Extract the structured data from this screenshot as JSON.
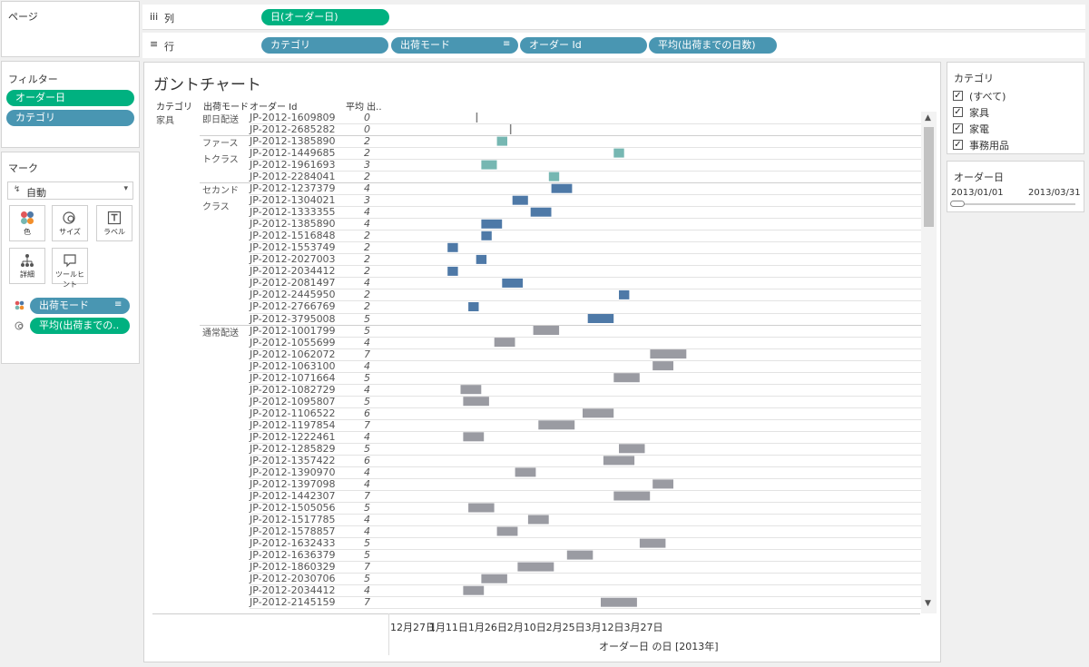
{
  "pages_panel": {
    "title": "ページ"
  },
  "columns_shelf": {
    "icon": "iii",
    "label": "列",
    "pills": [
      "日(オーダー日)"
    ]
  },
  "rows_shelf": {
    "icon": "≡",
    "label": "行",
    "pills": [
      "カテゴリ",
      "出荷モード",
      "オーダー Id",
      "平均(出荷までの日数)"
    ]
  },
  "filters": {
    "title": "フィルター",
    "items": [
      {
        "label": "オーダー日",
        "color": "#00b180"
      },
      {
        "label": "カテゴリ",
        "color": "#4996b2"
      }
    ]
  },
  "marks": {
    "title": "マーク",
    "type": "自動",
    "buttons": [
      {
        "label": "色",
        "icon": "color-dots-icon"
      },
      {
        "label": "サイズ",
        "icon": "size-icon"
      },
      {
        "label": "ラベル",
        "icon": "label-icon"
      },
      {
        "label": "詳細",
        "icon": "detail-icon"
      },
      {
        "label": "ツールヒント",
        "icon": "tooltip-icon"
      }
    ],
    "fields": [
      "出荷モード",
      "平均(出荷までの.."
    ]
  },
  "view": {
    "title": "ガントチャート",
    "headers": {
      "category": "カテゴリ",
      "ship_mode": "出荷モード",
      "order_id": "オーダー Id",
      "avg": "平均 出.."
    },
    "axis_title": "オーダー日 の日 [2013年]",
    "axis_ticks": [
      "12月27日",
      "1月11日",
      "1月26日",
      "2月10日",
      "2月25日",
      "3月12日",
      "3月27日"
    ]
  },
  "colors": {
    "即日配送": "#7f7f7f",
    "ファーストクラス": "#76b7b2",
    "セカンドクラス": "#4e79a7",
    "通常配送": "#9a9ba2"
  },
  "chart_data": {
    "type": "gantt",
    "x_label": "オーダー日 の日 [2013年]",
    "x_ticks": [
      "12月27日",
      "1月11日",
      "1月26日",
      "2月10日",
      "2月25日",
      "3月12日",
      "3月27日"
    ],
    "category": "家具",
    "groups": [
      {
        "ship_mode": "即日配送",
        "rows": [
          {
            "id": "JP-2012-1609809",
            "start": "2013-01-20",
            "avg": 0
          },
          {
            "id": "JP-2012-2685282",
            "start": "2013-02-02",
            "avg": 0
          }
        ]
      },
      {
        "ship_mode": "ファーストクラス",
        "rows": [
          {
            "id": "JP-2012-1385890",
            "start": "2013-01-28",
            "avg": 2
          },
          {
            "id": "JP-2012-1449685",
            "start": "2013-03-14",
            "avg": 2
          },
          {
            "id": "JP-2012-1961693",
            "start": "2013-01-22",
            "avg": 3
          },
          {
            "id": "JP-2012-2284041",
            "start": "2013-02-17",
            "avg": 2
          }
        ]
      },
      {
        "ship_mode": "セカンドクラス",
        "rows": [
          {
            "id": "JP-2012-1237379",
            "start": "2013-02-18",
            "avg": 4
          },
          {
            "id": "JP-2012-1304021",
            "start": "2013-02-03",
            "avg": 3
          },
          {
            "id": "JP-2012-1333355",
            "start": "2013-02-10",
            "avg": 4
          },
          {
            "id": "JP-2012-1385890",
            "start": "2013-01-22",
            "avg": 4
          },
          {
            "id": "JP-2012-1516848",
            "start": "2013-01-22",
            "avg": 2
          },
          {
            "id": "JP-2012-1553749",
            "start": "2013-01-09",
            "avg": 2
          },
          {
            "id": "JP-2012-2027003",
            "start": "2013-01-20",
            "avg": 2
          },
          {
            "id": "JP-2012-2034412",
            "start": "2013-01-09",
            "avg": 2
          },
          {
            "id": "JP-2012-2081497",
            "start": "2013-01-30",
            "avg": 4
          },
          {
            "id": "JP-2012-2445950",
            "start": "2013-03-16",
            "avg": 2
          },
          {
            "id": "JP-2012-2766769",
            "start": "2013-01-17",
            "avg": 2
          },
          {
            "id": "JP-2012-3795008",
            "start": "2013-03-04",
            "avg": 5
          }
        ]
      },
      {
        "ship_mode": "通常配送",
        "rows": [
          {
            "id": "JP-2012-1001799",
            "start": "2013-02-11",
            "avg": 5
          },
          {
            "id": "JP-2012-1055699",
            "start": "2013-01-27",
            "avg": 4
          },
          {
            "id": "JP-2012-1062072",
            "start": "2013-03-28",
            "avg": 7
          },
          {
            "id": "JP-2012-1063100",
            "start": "2013-03-29",
            "avg": 4
          },
          {
            "id": "JP-2012-1071664",
            "start": "2013-03-14",
            "avg": 5
          },
          {
            "id": "JP-2012-1082729",
            "start": "2013-01-14",
            "avg": 4
          },
          {
            "id": "JP-2012-1095807",
            "start": "2013-01-15",
            "avg": 5
          },
          {
            "id": "JP-2012-1106522",
            "start": "2013-03-02",
            "avg": 6
          },
          {
            "id": "JP-2012-1197854",
            "start": "2013-02-13",
            "avg": 7
          },
          {
            "id": "JP-2012-1222461",
            "start": "2013-01-15",
            "avg": 4
          },
          {
            "id": "JP-2012-1285829",
            "start": "2013-03-16",
            "avg": 5
          },
          {
            "id": "JP-2012-1357422",
            "start": "2013-03-10",
            "avg": 6
          },
          {
            "id": "JP-2012-1390970",
            "start": "2013-02-04",
            "avg": 4
          },
          {
            "id": "JP-2012-1397098",
            "start": "2013-03-29",
            "avg": 4
          },
          {
            "id": "JP-2012-1442307",
            "start": "2013-03-14",
            "avg": 7
          },
          {
            "id": "JP-2012-1505056",
            "start": "2013-01-17",
            "avg": 5
          },
          {
            "id": "JP-2012-1517785",
            "start": "2013-02-09",
            "avg": 4
          },
          {
            "id": "JP-2012-1578857",
            "start": "2013-01-28",
            "avg": 4
          },
          {
            "id": "JP-2012-1632433",
            "start": "2013-03-24",
            "avg": 5
          },
          {
            "id": "JP-2012-1636379",
            "start": "2013-02-24",
            "avg": 5
          },
          {
            "id": "JP-2012-1860329",
            "start": "2013-02-05",
            "avg": 7
          },
          {
            "id": "JP-2012-2030706",
            "start": "2013-01-22",
            "avg": 5
          },
          {
            "id": "JP-2012-2034412",
            "start": "2013-01-15",
            "avg": 4
          },
          {
            "id": "JP-2012-2145159",
            "start": "2013-03-09",
            "avg": 7
          }
        ]
      }
    ]
  },
  "category_filter": {
    "title": "カテゴリ",
    "options": [
      {
        "label": "(すべて)",
        "checked": true
      },
      {
        "label": "家具",
        "checked": true
      },
      {
        "label": "家電",
        "checked": true
      },
      {
        "label": "事務用品",
        "checked": true
      }
    ]
  },
  "date_filter": {
    "title": "オーダー日",
    "start": "2013/01/01",
    "end": "2013/03/31"
  }
}
